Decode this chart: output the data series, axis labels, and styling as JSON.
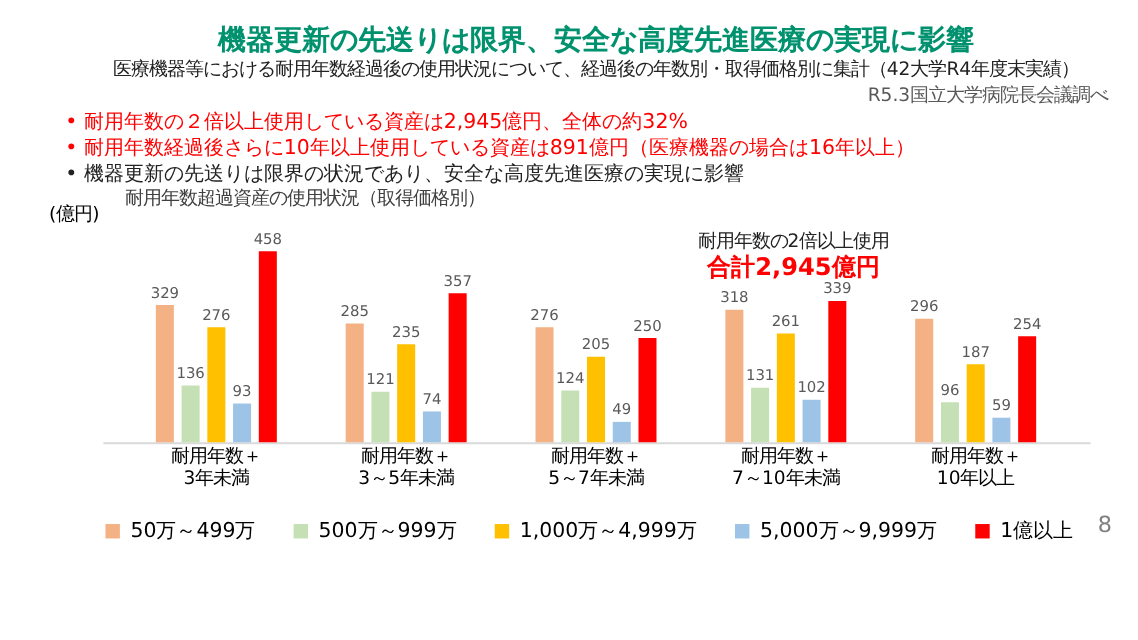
{
  "chart_data": {
    "type": "bar",
    "title": "機器更新の先送りは限界、安全な高度先進医療の実現に影響",
    "subtitle": "医療機器等における耐用年数経過後の使用状況について、経過後の年数別・取得価格別に集計（42大学R4年度末実績）",
    "ylabel": "(億円)",
    "categories": [
      "耐用年数＋3年未満",
      "耐用年数＋3～5年未満",
      "耐用年数＋5～7年未満",
      "耐用年数＋7～10年未満",
      "耐用年数＋10年以上"
    ],
    "series": [
      {
        "name": "50万～499万",
        "color": "#f4b183",
        "values": [
          329,
          285,
          276,
          318,
          296
        ]
      },
      {
        "name": "500万～999万",
        "color": "#c5e0b4",
        "values": [
          136,
          121,
          124,
          131,
          96
        ]
      },
      {
        "name": "1,000万～4,999万",
        "color": "#ffc000",
        "values": [
          276,
          235,
          205,
          261,
          187
        ]
      },
      {
        "name": "5,000万～9,999万",
        "color": "#9dc3e6",
        "values": [
          93,
          74,
          49,
          102,
          59
        ]
      },
      {
        "name": "1億以上",
        "color": "#ff0000",
        "values": [
          458,
          357,
          250,
          339,
          254
        ]
      }
    ],
    "data_labels": true,
    "legend": "bottom",
    "annotations": [
      "R5.3国立大学病院長会議調べ",
      "• 耐用年数の２倍以上使用している資産は2,945億円、全体の約32%",
      "• 耐用年数経過後さらに10年以上使用している資産は891億円（医療機器の場合は16年以上）",
      "• 機器更新の先送りは限界の状況であり、安全な高度先進医療の実現に影響",
      "耐用年数超過資産の使用状況（取得価格別）",
      "耐用年数の2倍以上使用",
      "合計2,945億円",
      "8"
    ]
  }
}
